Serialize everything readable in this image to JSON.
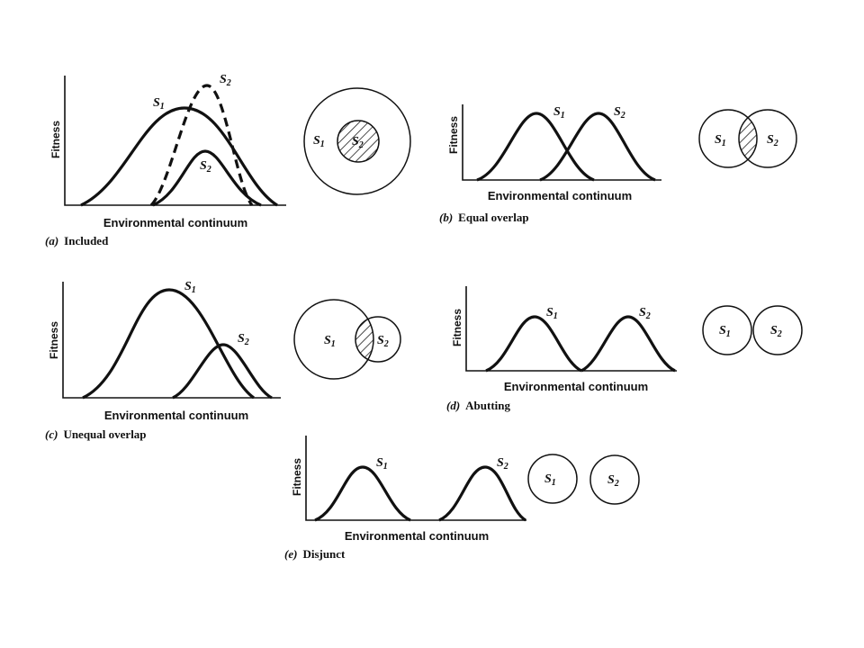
{
  "species": {
    "s1_letter": "S",
    "s1_sub": "1",
    "s2_letter": "S",
    "s2_sub": "2"
  },
  "axes": {
    "xlabel": "Environmental continuum",
    "ylabel": "Fitness"
  },
  "panels": {
    "a": {
      "letter": "(a)",
      "title": "Included"
    },
    "b": {
      "letter": "(b)",
      "title": "Equal overlap"
    },
    "c": {
      "letter": "(c)",
      "title": "Unequal overlap"
    },
    "d": {
      "letter": "(d)",
      "title": "Abutting"
    },
    "e": {
      "letter": "(e)",
      "title": "Disjunct"
    }
  },
  "colors": {
    "ink": "#111111",
    "background": "#ffffff"
  }
}
